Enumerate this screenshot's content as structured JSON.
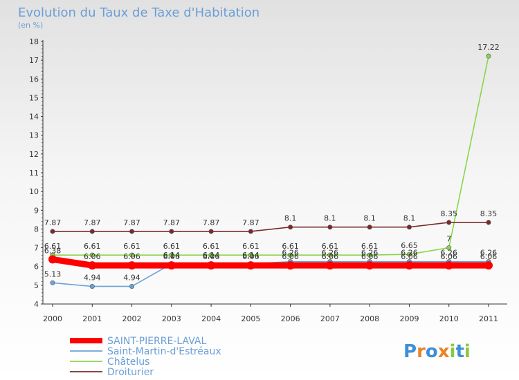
{
  "chart_data": {
    "type": "line",
    "title": "Evolution du Taux de Taxe d'Habitation",
    "subtitle": "(en %)",
    "xlabel": "",
    "ylabel": "",
    "categories": [
      "2000",
      "2001",
      "2002",
      "2003",
      "2004",
      "2005",
      "2006",
      "2007",
      "2008",
      "2009",
      "2010",
      "2011"
    ],
    "ylim": [
      4,
      18
    ],
    "yticks": [
      4,
      5,
      6,
      7,
      8,
      9,
      10,
      11,
      12,
      13,
      14,
      15,
      16,
      17,
      18
    ],
    "legend_position": "bottom-left",
    "series": [
      {
        "name": "SAINT-PIERRE-LAVAL",
        "color": "#ff0000",
        "style": "thick",
        "values": [
          6.38,
          6.06,
          6.06,
          6.06,
          6.06,
          6.06,
          6.06,
          6.06,
          6.06,
          6.06,
          6.06,
          6.06
        ],
        "labels": [
          "6.38",
          "6.06",
          "6.06",
          "6.06",
          "6.06",
          "6.06",
          "6.06",
          "6.06",
          "6.06",
          "6.06",
          "6.06",
          "6.06"
        ]
      },
      {
        "name": "Saint-Martin-d'Estréaux",
        "color": "#6aa2d8",
        "style": "thin",
        "values": [
          5.13,
          4.94,
          4.94,
          6.14,
          6.14,
          6.14,
          6.26,
          6.26,
          6.26,
          6.26,
          6.26,
          6.26
        ],
        "labels": [
          "5.13",
          "4.94",
          "4.94",
          "6.14",
          "6.14",
          "6.14",
          "6.26",
          "6.26",
          "6.26",
          "6.26",
          "6.26",
          "6.26"
        ]
      },
      {
        "name": "Châtelus",
        "color": "#88d64a",
        "style": "thin",
        "values": [
          6.61,
          6.61,
          6.61,
          6.61,
          6.61,
          6.61,
          6.61,
          6.61,
          6.61,
          6.65,
          7,
          17.22
        ],
        "labels": [
          "6.61",
          "6.61",
          "6.61",
          "6.61",
          "6.61",
          "6.61",
          "6.61",
          "6.61",
          "6.61",
          "6.65",
          "7",
          "17.22"
        ]
      },
      {
        "name": "Droiturier",
        "color": "#7a2a2a",
        "style": "thin",
        "values": [
          7.87,
          7.87,
          7.87,
          7.87,
          7.87,
          7.87,
          8.1,
          8.1,
          8.1,
          8.1,
          8.35,
          8.35
        ],
        "labels": [
          "7.87",
          "7.87",
          "7.87",
          "7.87",
          "7.87",
          "7.87",
          "8.1",
          "8.1",
          "8.1",
          "8.1",
          "8.35",
          "8.35"
        ]
      }
    ]
  },
  "brand": {
    "letters": [
      "P",
      "r",
      "o",
      "x",
      "i",
      "t",
      "i"
    ],
    "colors": [
      "#3d8fd6",
      "#e8832a",
      "#3d8fd6",
      "#e8832a",
      "#8cc63f",
      "#3d8fd6",
      "#8cc63f"
    ]
  }
}
